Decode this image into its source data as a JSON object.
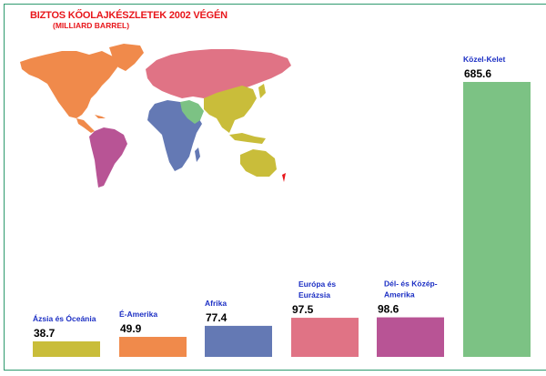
{
  "chart_data": {
    "type": "bar",
    "title": "BIZTOS KŐOLAJKÉSZLETEK 2002 VÉGÉN",
    "subtitle": "(MILLIARD BARREL)",
    "categories": [
      "Ázsia és Óceánia",
      "É-Amerika",
      "Afrika",
      "Európa és Eurázsia",
      "Dél- és Közép-Amerika",
      "Közel-Kelet"
    ],
    "category_lines": [
      [
        "Ázsia és Óceánia"
      ],
      [
        "É-Amerika"
      ],
      [
        "Afrika"
      ],
      [
        "Európa és",
        "Eurázsia"
      ],
      [
        "Dél- és Közép-",
        "Amerika"
      ],
      [
        "Közel-Kelet"
      ]
    ],
    "values": [
      38.7,
      49.9,
      77.4,
      97.5,
      98.6,
      685.6
    ],
    "value_labels": [
      "38.7",
      "49.9",
      "77.4",
      "97.5",
      "98.6",
      "685.6"
    ],
    "colors": [
      "#c9bd3a",
      "#f08a4b",
      "#6479b4",
      "#e07385",
      "#b85495",
      "#7cc284"
    ],
    "ylim": [
      0,
      685.6
    ],
    "grid": false,
    "legend": "none"
  },
  "map_regions": [
    {
      "name": "north-america-region",
      "color": "#f08a4b"
    },
    {
      "name": "south-america-region",
      "color": "#b85495"
    },
    {
      "name": "europe-eurasia-region",
      "color": "#e07385"
    },
    {
      "name": "africa-region",
      "color": "#6479b4"
    },
    {
      "name": "middle-east-region",
      "color": "#7cc284"
    },
    {
      "name": "asia-oceania-region",
      "color": "#c9bd3a"
    }
  ]
}
